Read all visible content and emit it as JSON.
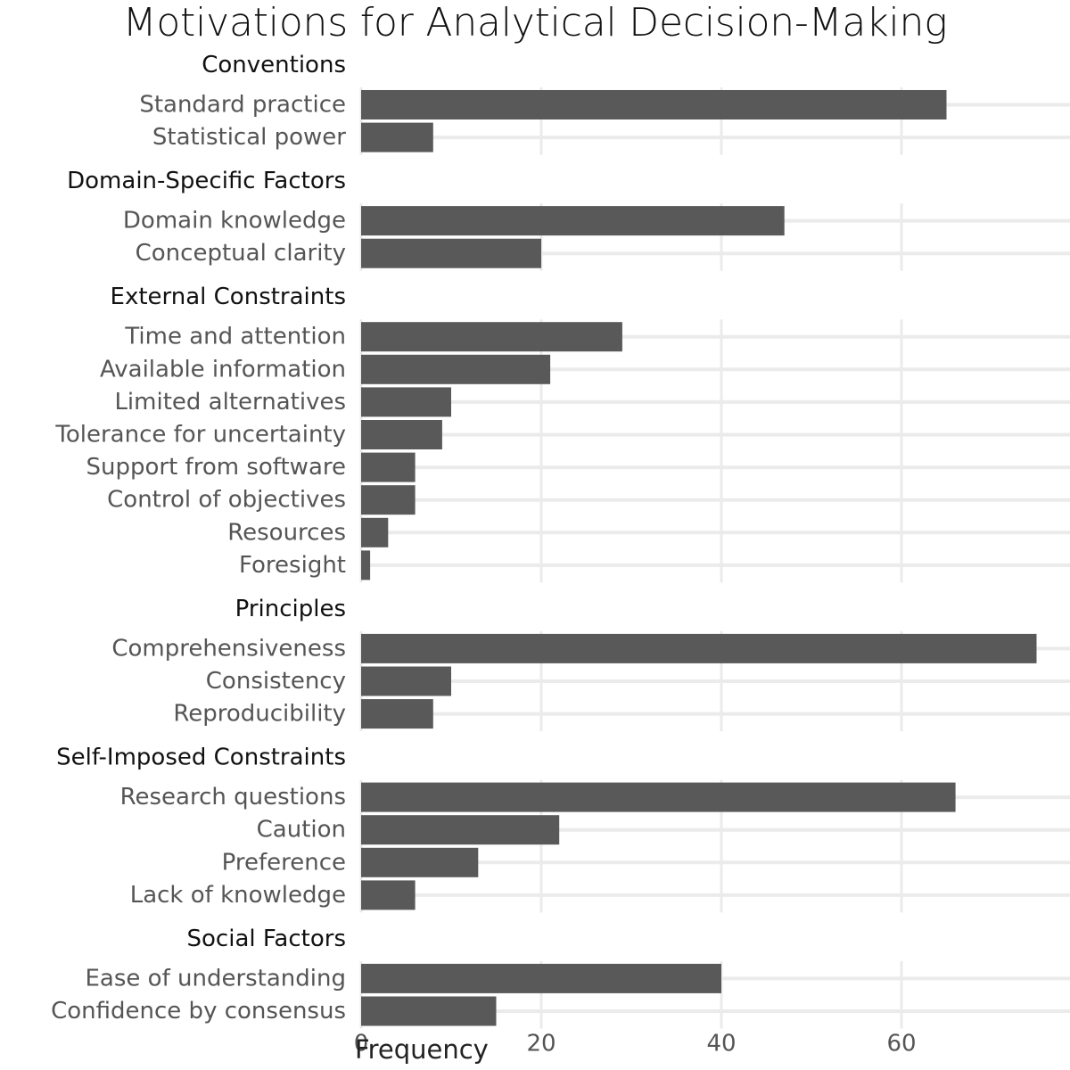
{
  "chart_data": {
    "type": "bar",
    "orientation": "horizontal",
    "title": "Motivations for Analytical Decision-Making",
    "xlabel": "Frequency",
    "ylabel": "",
    "xlim": [
      0,
      78
    ],
    "xticks": [
      0,
      20,
      40,
      60
    ],
    "grid": true,
    "colors": {
      "bar": "#595959",
      "grid": "#ebebeb",
      "group_label": "#111111",
      "category_label": "#555555",
      "tick_label": "#555555"
    },
    "groups": [
      {
        "name": "Conventions",
        "items": [
          {
            "label": "Standard practice",
            "value": 65
          },
          {
            "label": "Statistical power",
            "value": 8
          }
        ]
      },
      {
        "name": "Domain-Specific Factors",
        "items": [
          {
            "label": "Domain knowledge",
            "value": 47
          },
          {
            "label": "Conceptual clarity",
            "value": 20
          }
        ]
      },
      {
        "name": "External Constraints",
        "items": [
          {
            "label": "Time and attention",
            "value": 29
          },
          {
            "label": "Available information",
            "value": 21
          },
          {
            "label": "Limited alternatives",
            "value": 10
          },
          {
            "label": "Tolerance for uncertainty",
            "value": 9
          },
          {
            "label": "Support from software",
            "value": 6
          },
          {
            "label": "Control of objectives",
            "value": 6
          },
          {
            "label": "Resources",
            "value": 3
          },
          {
            "label": "Foresight",
            "value": 1
          }
        ]
      },
      {
        "name": "Principles",
        "items": [
          {
            "label": "Comprehensiveness",
            "value": 75
          },
          {
            "label": "Consistency",
            "value": 10
          },
          {
            "label": "Reproducibility",
            "value": 8
          }
        ]
      },
      {
        "name": "Self-Imposed Constraints",
        "items": [
          {
            "label": "Research questions",
            "value": 66
          },
          {
            "label": "Caution",
            "value": 22
          },
          {
            "label": "Preference",
            "value": 13
          },
          {
            "label": "Lack of knowledge",
            "value": 6
          }
        ]
      },
      {
        "name": "Social Factors",
        "items": [
          {
            "label": "Ease of understanding",
            "value": 40
          },
          {
            "label": "Confidence by consensus",
            "value": 15
          }
        ]
      }
    ]
  }
}
